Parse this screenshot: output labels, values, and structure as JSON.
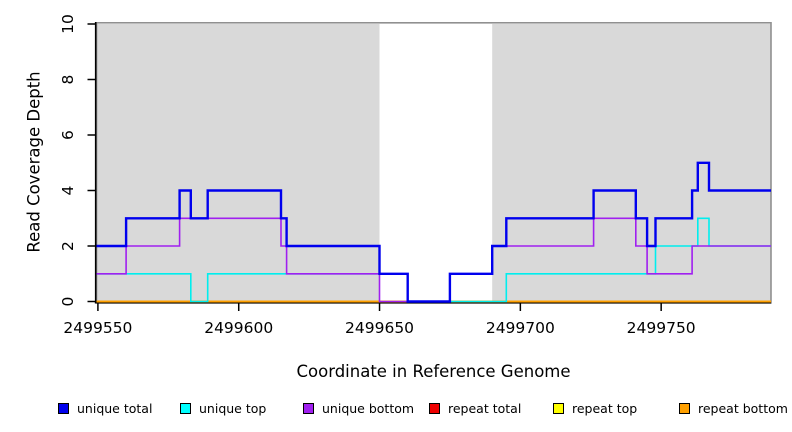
{
  "chart_data": {
    "type": "line",
    "subtype": "step-coverage",
    "title": "",
    "xlabel": "Coordinate in Reference Genome",
    "ylabel": "Read Coverage Depth",
    "xlim": [
      2499549.5,
      2499789
    ],
    "ylim": [
      0,
      10
    ],
    "x_ticks": [
      2499550,
      2499600,
      2499650,
      2499700,
      2499750
    ],
    "y_ticks": [
      0,
      2,
      4,
      6,
      8,
      10
    ],
    "grid": false,
    "legend_position": "bottom",
    "plot_box_color": "#909090",
    "shaded_regions": {
      "color": "#d9d9d9",
      "ranges": [
        [
          2499549.5,
          2499650
        ],
        [
          2499690,
          2499789
        ]
      ]
    },
    "x_end": 2499789,
    "draw_order": [
      "repeat_total",
      "repeat_top",
      "repeat_bottom",
      "unique_top",
      "unique_bottom",
      "unique_total"
    ],
    "series": [
      {
        "key": "unique_total",
        "name": "unique total",
        "color": "#0000ee",
        "line_width": 2.4,
        "steps": [
          [
            2499549.5,
            2
          ],
          [
            2499560,
            3
          ],
          [
            2499579,
            4
          ],
          [
            2499583,
            3
          ],
          [
            2499589,
            4
          ],
          [
            2499615,
            3
          ],
          [
            2499617,
            2
          ],
          [
            2499650,
            1
          ],
          [
            2499660,
            0
          ],
          [
            2499675,
            1
          ],
          [
            2499690,
            2
          ],
          [
            2499695,
            3
          ],
          [
            2499726,
            4
          ],
          [
            2499741,
            3
          ],
          [
            2499745,
            2
          ],
          [
            2499748,
            3
          ],
          [
            2499761,
            4
          ],
          [
            2499763,
            5
          ],
          [
            2499767,
            4
          ]
        ]
      },
      {
        "key": "unique_top",
        "name": "unique top",
        "color": "#00eeee",
        "line_width": 1.6,
        "steps": [
          [
            2499549.5,
            1
          ],
          [
            2499583,
            0
          ],
          [
            2499589,
            1
          ],
          [
            2499660,
            0
          ],
          [
            2499695,
            1
          ],
          [
            2499748,
            2
          ],
          [
            2499763,
            3
          ],
          [
            2499767,
            2
          ]
        ]
      },
      {
        "key": "unique_bottom",
        "name": "unique bottom",
        "color": "#a020f0",
        "line_width": 1.6,
        "steps": [
          [
            2499549.5,
            1
          ],
          [
            2499560,
            2
          ],
          [
            2499579,
            3
          ],
          [
            2499615,
            2
          ],
          [
            2499617,
            1
          ],
          [
            2499650,
            0
          ],
          [
            2499675,
            1
          ],
          [
            2499690,
            2
          ],
          [
            2499726,
            3
          ],
          [
            2499741,
            2
          ],
          [
            2499745,
            1
          ],
          [
            2499761,
            2
          ]
        ]
      },
      {
        "key": "repeat_total",
        "name": "repeat total",
        "color": "#ee0000",
        "line_width": 2,
        "steps": [
          [
            2499549.5,
            0
          ]
        ]
      },
      {
        "key": "repeat_top",
        "name": "repeat top",
        "color": "#ffff00",
        "line_width": 1.6,
        "steps": [
          [
            2499549.5,
            0
          ]
        ]
      },
      {
        "key": "repeat_bottom",
        "name": "repeat bottom",
        "color": "#ffa000",
        "line_width": 2,
        "steps": [
          [
            2499549.5,
            0
          ]
        ]
      }
    ]
  },
  "axes": {
    "x": {
      "label": "Coordinate in Reference Genome"
    },
    "y": {
      "label": "Read Coverage Depth"
    }
  },
  "legend": {
    "items": [
      {
        "label": "unique total",
        "color": "#0000ee"
      },
      {
        "label": "unique top",
        "color": "#00ffff"
      },
      {
        "label": "unique bottom",
        "color": "#a020f0"
      },
      {
        "label": "repeat total",
        "color": "#ee0000"
      },
      {
        "label": "repeat top",
        "color": "#ffff00"
      },
      {
        "label": "repeat bottom",
        "color": "#ffa000"
      }
    ]
  }
}
